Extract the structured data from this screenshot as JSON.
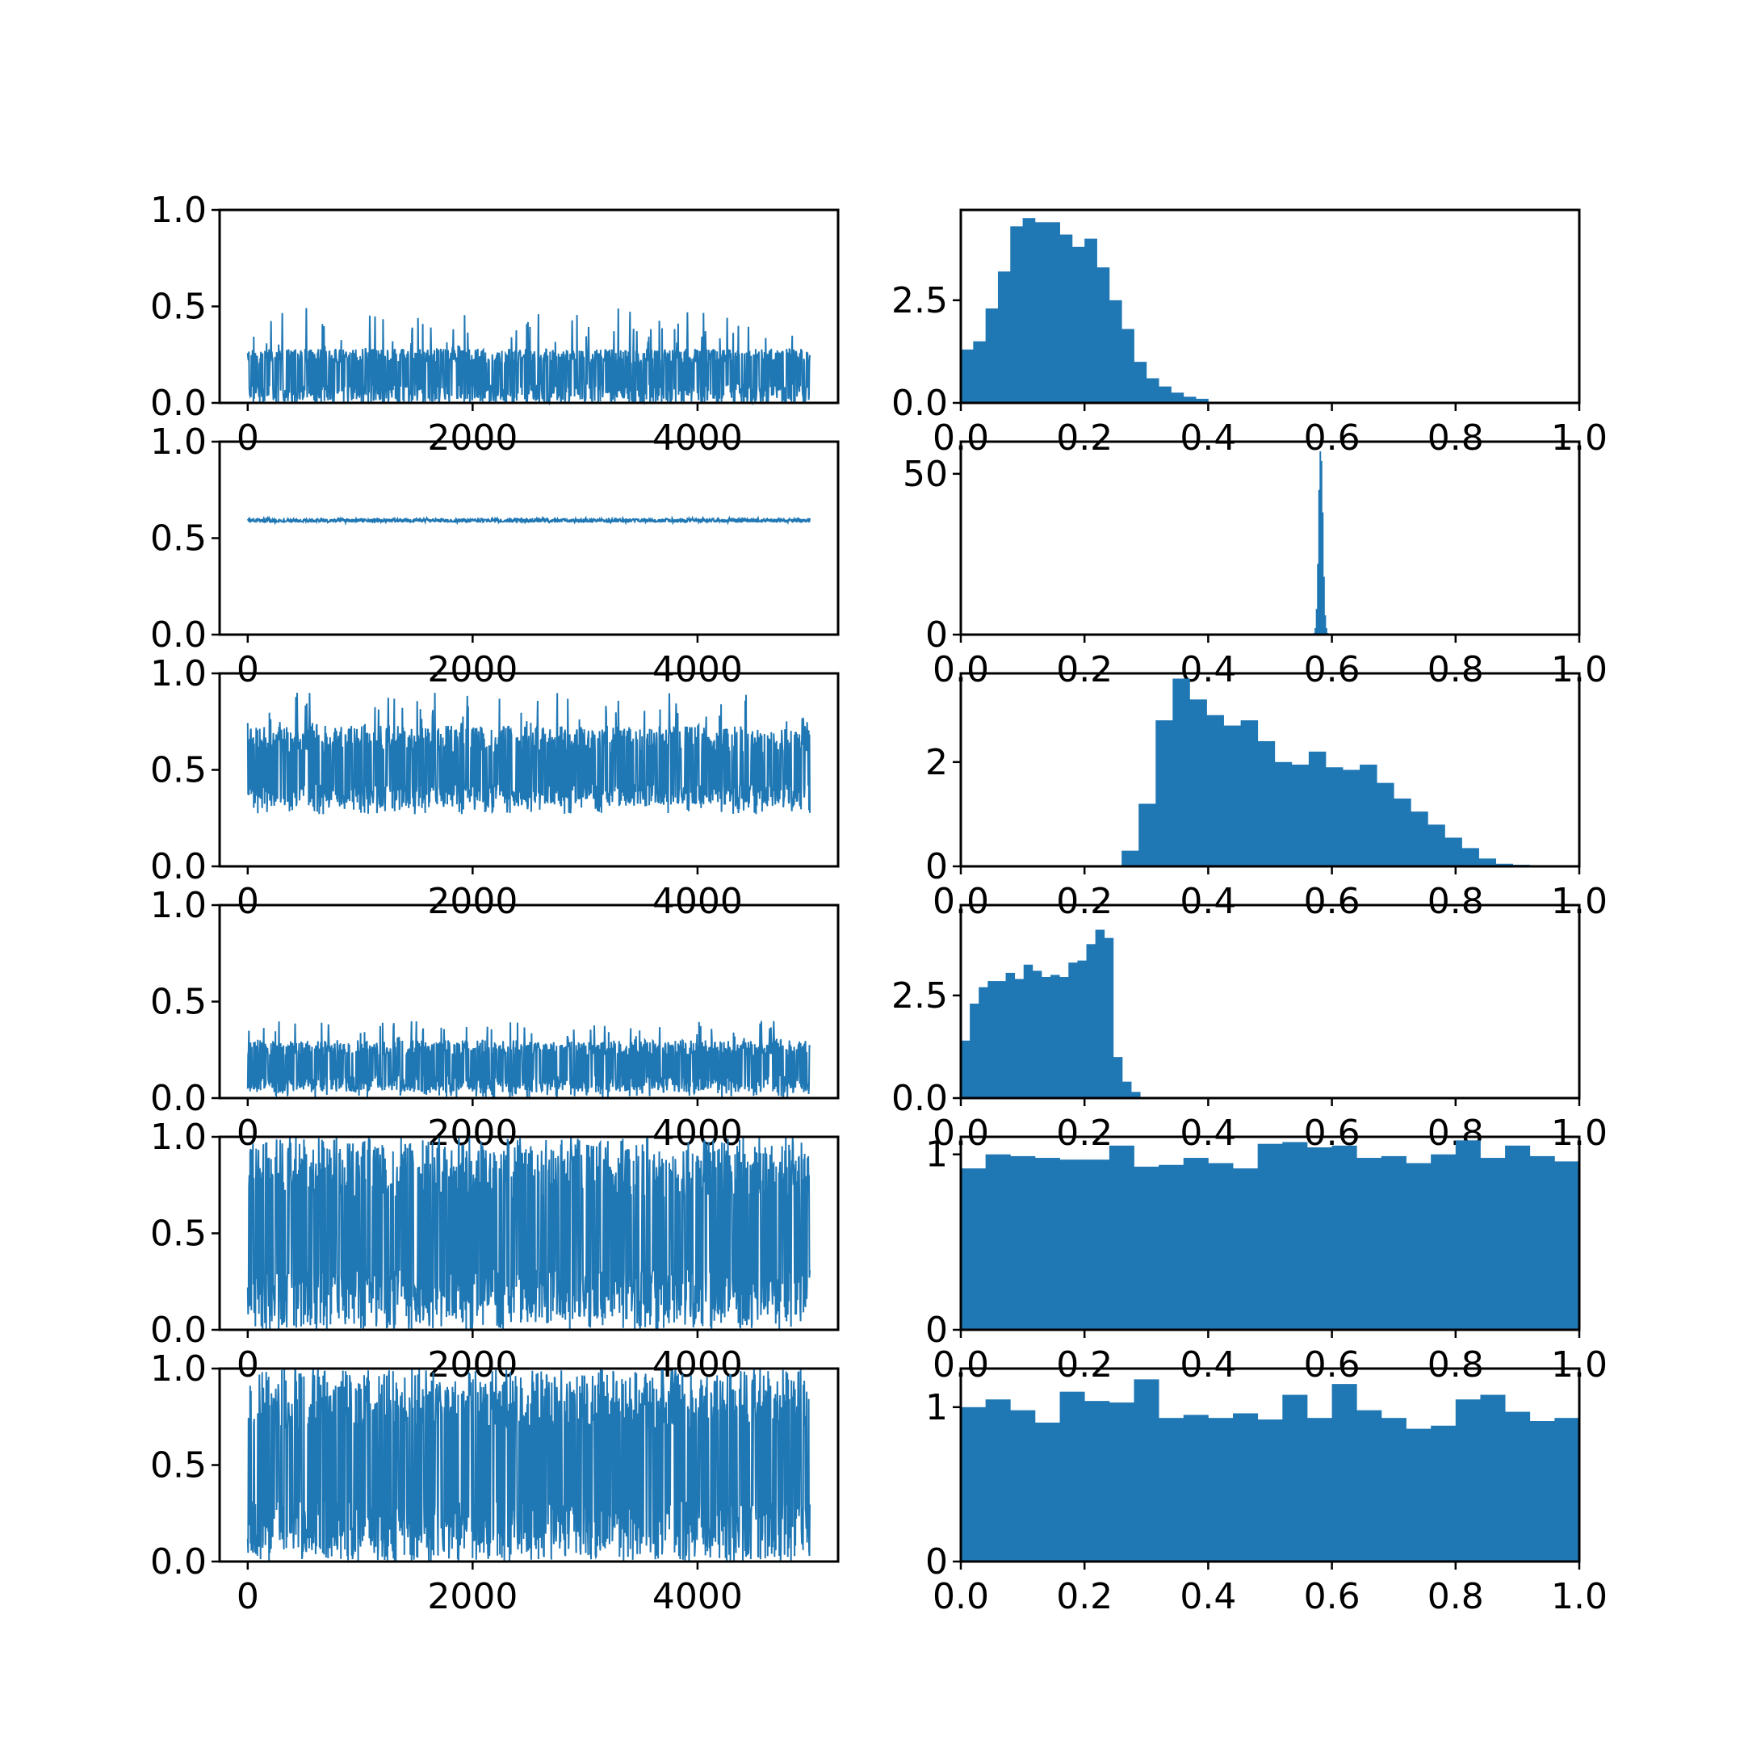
{
  "colors": {
    "series": "#1f77b4",
    "axes": "#000000",
    "background": "#ffffff"
  },
  "chart_data": [
    {
      "type": "line",
      "row": 1,
      "column": "trace",
      "n_samples": 5000,
      "xlim": [
        -250,
        5250
      ],
      "ylim": [
        0,
        1.0
      ],
      "xticks": [
        "0",
        "2000",
        "4000"
      ],
      "yticks": [
        "0.0",
        "0.5",
        "1.0"
      ],
      "trace": {
        "lower": 0.0,
        "lower_min": 0.0,
        "upper": 0.28,
        "upper_max": 0.5,
        "center": 0.16
      }
    },
    {
      "type": "bar",
      "row": 1,
      "column": "histogram",
      "xlim": [
        0,
        1.0
      ],
      "ylim": [
        0,
        4.7
      ],
      "xticks": [
        "0.0",
        "0.2",
        "0.4",
        "0.6",
        "0.8",
        "1.0"
      ],
      "yticks": [
        "0.0",
        "2.5"
      ],
      "bin_edges_start": 0.0,
      "bin_width": 0.02,
      "values": [
        1.3,
        1.5,
        2.3,
        3.2,
        4.3,
        4.5,
        4.4,
        4.4,
        4.1,
        3.8,
        4.0,
        3.3,
        2.5,
        1.8,
        1.0,
        0.6,
        0.4,
        0.25,
        0.15,
        0.1
      ]
    },
    {
      "type": "line",
      "row": 2,
      "column": "trace",
      "n_samples": 5000,
      "xlim": [
        -250,
        5250
      ],
      "ylim": [
        0,
        1.0
      ],
      "xticks": [
        "0",
        "2000",
        "4000"
      ],
      "yticks": [
        "0.0",
        "0.5",
        "1.0"
      ],
      "trace": {
        "lower": 0.585,
        "lower_min": 0.58,
        "upper": 0.6,
        "upper_max": 0.605,
        "center": 0.59
      }
    },
    {
      "type": "bar",
      "row": 2,
      "column": "histogram",
      "xlim": [
        0,
        1.0
      ],
      "ylim": [
        0,
        60
      ],
      "xticks": [
        "0.0",
        "0.2",
        "0.4",
        "0.6",
        "0.8",
        "1.0"
      ],
      "yticks": [
        "0",
        "50"
      ],
      "bin_edges_start": 0.57,
      "bin_width": 0.002,
      "values": [
        0.5,
        2,
        8,
        22,
        45,
        57,
        54,
        38,
        18,
        6,
        2,
        0.5,
        0.2
      ]
    },
    {
      "type": "line",
      "row": 3,
      "column": "trace",
      "n_samples": 5000,
      "xlim": [
        -250,
        5250
      ],
      "ylim": [
        0,
        1.0
      ],
      "xticks": [
        "0",
        "2000",
        "4000"
      ],
      "yticks": [
        "0.0",
        "0.5",
        "1.0"
      ],
      "trace": {
        "lower": 0.31,
        "lower_min": 0.27,
        "upper": 0.73,
        "upper_max": 0.9,
        "center": 0.5
      }
    },
    {
      "type": "bar",
      "row": 3,
      "column": "histogram",
      "xlim": [
        0,
        1.0
      ],
      "ylim": [
        0,
        3.7
      ],
      "xticks": [
        "0.0",
        "0.2",
        "0.4",
        "0.6",
        "0.8",
        "1.0"
      ],
      "yticks": [
        "0",
        "2"
      ],
      "bin_edges_start": 0.26,
      "bin_width": 0.0275,
      "values": [
        0.3,
        1.2,
        2.8,
        3.6,
        3.2,
        2.9,
        2.7,
        2.8,
        2.4,
        2.0,
        1.95,
        2.2,
        1.9,
        1.85,
        1.95,
        1.6,
        1.3,
        1.05,
        0.8,
        0.55,
        0.35,
        0.15,
        0.05,
        0.03,
        0.02
      ]
    },
    {
      "type": "line",
      "row": 4,
      "column": "trace",
      "n_samples": 5000,
      "xlim": [
        -250,
        5250
      ],
      "ylim": [
        0,
        1.0
      ],
      "xticks": [
        "0",
        "2000",
        "4000"
      ],
      "yticks": [
        "0.0",
        "0.5",
        "1.0"
      ],
      "trace": {
        "lower": 0.03,
        "lower_min": 0.0,
        "upper": 0.3,
        "upper_max": 0.4,
        "center": 0.17
      }
    },
    {
      "type": "bar",
      "row": 4,
      "column": "histogram",
      "xlim": [
        0,
        1.0
      ],
      "ylim": [
        0,
        4.7
      ],
      "xticks": [
        "0.0",
        "0.2",
        "0.4",
        "0.6",
        "0.8",
        "1.0"
      ],
      "yticks": [
        "0.0",
        "2.5"
      ],
      "bin_edges_start": 0.0,
      "bin_width": 0.0145,
      "values": [
        1.4,
        2.3,
        2.7,
        2.85,
        2.85,
        3.05,
        2.9,
        3.25,
        3.1,
        2.95,
        3.0,
        2.95,
        3.3,
        3.35,
        3.75,
        4.1,
        3.9,
        1.0,
        0.4,
        0.15
      ]
    },
    {
      "type": "line",
      "row": 5,
      "column": "trace",
      "n_samples": 5000,
      "xlim": [
        -250,
        5250
      ],
      "ylim": [
        0,
        1.0
      ],
      "xticks": [
        "0",
        "2000",
        "4000"
      ],
      "yticks": [
        "0.0",
        "0.5",
        "1.0"
      ],
      "trace": {
        "lower": 0.03,
        "lower_min": 0.0,
        "upper": 0.97,
        "upper_max": 1.0,
        "center": 0.5
      }
    },
    {
      "type": "bar",
      "row": 5,
      "column": "histogram",
      "xlim": [
        0,
        1.0
      ],
      "ylim": [
        0,
        1.1
      ],
      "xticks": [
        "0.0",
        "0.2",
        "0.4",
        "0.6",
        "0.8",
        "1.0"
      ],
      "yticks": [
        "0",
        "1"
      ],
      "bin_edges_start": 0.0,
      "bin_width": 0.04,
      "values": [
        0.92,
        1.0,
        0.99,
        0.98,
        0.97,
        0.97,
        1.05,
        0.93,
        0.94,
        0.98,
        0.95,
        0.92,
        1.06,
        1.07,
        1.04,
        1.05,
        0.98,
        0.99,
        0.95,
        1.0,
        1.08,
        0.98,
        1.05,
        0.99,
        0.96
      ]
    },
    {
      "type": "line",
      "row": 6,
      "column": "trace",
      "n_samples": 5000,
      "xlim": [
        -250,
        5250
      ],
      "ylim": [
        0,
        1.0
      ],
      "xticks": [
        "0",
        "2000",
        "4000"
      ],
      "yticks": [
        "0.0",
        "0.5",
        "1.0"
      ],
      "trace": {
        "lower": 0.03,
        "lower_min": 0.0,
        "upper": 0.97,
        "upper_max": 1.0,
        "center": 0.5
      }
    },
    {
      "type": "bar",
      "row": 6,
      "column": "histogram",
      "xlim": [
        0,
        1.0
      ],
      "ylim": [
        0,
        1.25
      ],
      "xticks": [
        "0.0",
        "0.2",
        "0.4",
        "0.6",
        "0.8",
        "1.0"
      ],
      "yticks": [
        "0",
        "1"
      ],
      "bin_edges_start": 0.0,
      "bin_width": 0.04,
      "values": [
        1.0,
        1.05,
        0.98,
        0.9,
        1.1,
        1.04,
        1.03,
        1.18,
        0.93,
        0.95,
        0.93,
        0.96,
        0.92,
        1.08,
        0.93,
        1.15,
        0.98,
        0.93,
        0.86,
        0.88,
        1.05,
        1.08,
        0.97,
        0.91,
        0.93
      ]
    }
  ]
}
